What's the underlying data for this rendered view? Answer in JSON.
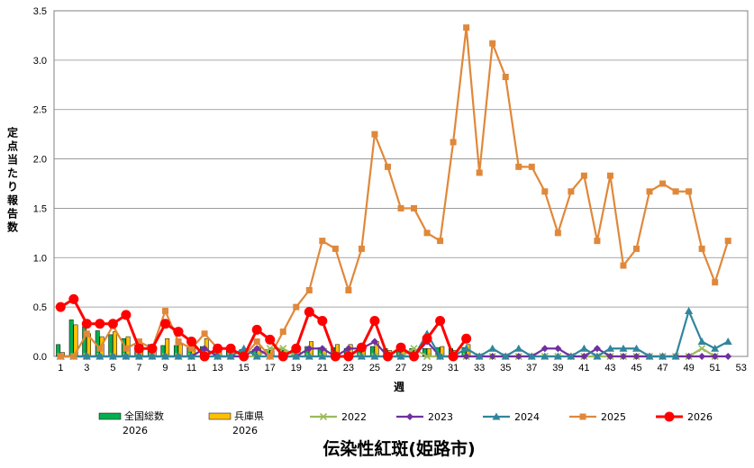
{
  "chart_data": {
    "type": "bar+line",
    "title": "伝染性紅斑(姫路市)",
    "xlabel": "週",
    "ylabel": "定点当たり報告数",
    "ylim": [
      0,
      3.5
    ],
    "yticks": [
      "0.0",
      "0.5",
      "1.0",
      "1.5",
      "2.0",
      "2.5",
      "3.0",
      "3.5"
    ],
    "xlim": [
      1,
      53
    ],
    "xticks": [
      1,
      3,
      5,
      7,
      9,
      11,
      13,
      15,
      17,
      19,
      21,
      23,
      25,
      27,
      29,
      31,
      33,
      35,
      37,
      39,
      41,
      43,
      45,
      47,
      49,
      51,
      53
    ],
    "grid": "horizontal",
    "legend_position": "bottom",
    "bars": [
      {
        "name": "全国総数",
        "name2": "2026",
        "color": "#00B050",
        "x": [
          1,
          2,
          3,
          4,
          5,
          6,
          7,
          8,
          9,
          10,
          11,
          12,
          13,
          14,
          15,
          16,
          17,
          18,
          19,
          20,
          21,
          22,
          23,
          24,
          25,
          26,
          27,
          28,
          29,
          30,
          31,
          32
        ],
        "values": [
          0.12,
          0.37,
          0.3,
          0.26,
          0.22,
          0.18,
          0.13,
          0.12,
          0.11,
          0.11,
          0.1,
          0.1,
          0.08,
          0.08,
          0.07,
          0.07,
          0.07,
          0.07,
          0.06,
          0.1,
          0.09,
          0.09,
          0.08,
          0.09,
          0.1,
          0.08,
          0.09,
          0.08,
          0.08,
          0.09,
          0.08,
          0.09
        ]
      },
      {
        "name": "兵庫県",
        "name2": "2026",
        "color": "#FFC000",
        "x": [
          1,
          2,
          3,
          4,
          5,
          6,
          7,
          8,
          9,
          10,
          11,
          12,
          13,
          14,
          15,
          16,
          17,
          18,
          19,
          20,
          21,
          22,
          23,
          24,
          25,
          26,
          27,
          28,
          29,
          30,
          31,
          32
        ],
        "values": [
          0.04,
          0.32,
          0.23,
          0.2,
          0.25,
          0.2,
          0.12,
          0.1,
          0.18,
          0.12,
          0.09,
          0.18,
          0.06,
          0.05,
          0.03,
          0.1,
          0.06,
          0.06,
          0.1,
          0.15,
          0.08,
          0.12,
          0.12,
          0.12,
          0.15,
          0.06,
          0.08,
          0.06,
          0.08,
          0.1,
          0.06,
          0.12
        ]
      }
    ],
    "series": [
      {
        "name": "2022",
        "color": "#9BBB59",
        "marker": "x",
        "x": [
          1,
          2,
          3,
          4,
          5,
          6,
          7,
          8,
          9,
          10,
          11,
          12,
          13,
          14,
          15,
          16,
          17,
          18,
          19,
          20,
          21,
          22,
          23,
          24,
          25,
          26,
          27,
          28,
          29,
          30,
          31,
          32,
          33,
          34,
          35,
          36,
          37,
          38,
          39,
          40,
          41,
          42,
          43,
          44,
          45,
          46,
          47,
          48,
          49,
          50,
          51
        ],
        "values": [
          0,
          0,
          0,
          0,
          0,
          0,
          0,
          0,
          0,
          0,
          0,
          0,
          0,
          0,
          0,
          0,
          0.08,
          0.08,
          0,
          0,
          0,
          0,
          0,
          0,
          0,
          0,
          0,
          0.08,
          0,
          0,
          0,
          0,
          0,
          0,
          0,
          0,
          0,
          0,
          0,
          0,
          0,
          0,
          0,
          0,
          0,
          0,
          0,
          0,
          0,
          0.08,
          0
        ]
      },
      {
        "name": "2023",
        "color": "#7030A0",
        "marker": "diamond",
        "x": [
          1,
          2,
          3,
          4,
          5,
          6,
          7,
          8,
          9,
          10,
          11,
          12,
          13,
          14,
          15,
          16,
          17,
          18,
          19,
          20,
          21,
          22,
          23,
          24,
          25,
          26,
          27,
          28,
          29,
          30,
          31,
          32,
          33,
          34,
          35,
          36,
          37,
          38,
          39,
          40,
          41,
          42,
          43,
          44,
          45,
          46,
          47,
          48,
          49,
          50,
          51,
          52
        ],
        "values": [
          0,
          0,
          0,
          0,
          0,
          0,
          0,
          0,
          0,
          0,
          0,
          0.08,
          0,
          0,
          0,
          0.08,
          0,
          0,
          0,
          0.08,
          0.08,
          0,
          0.08,
          0.08,
          0.15,
          0,
          0,
          0,
          0.15,
          0,
          0,
          0,
          0,
          0,
          0,
          0,
          0,
          0.08,
          0.08,
          0,
          0,
          0.08,
          0,
          0,
          0,
          0,
          0,
          0,
          0,
          0,
          0,
          0
        ]
      },
      {
        "name": "2024",
        "color": "#31859C",
        "marker": "triangle",
        "x": [
          1,
          2,
          3,
          4,
          5,
          6,
          7,
          8,
          9,
          10,
          11,
          12,
          13,
          14,
          15,
          16,
          17,
          18,
          19,
          20,
          21,
          22,
          23,
          24,
          25,
          26,
          27,
          28,
          29,
          30,
          31,
          32,
          33,
          34,
          35,
          36,
          37,
          38,
          39,
          40,
          41,
          42,
          43,
          44,
          45,
          46,
          47,
          48,
          49,
          50,
          51,
          52
        ],
        "values": [
          0,
          0,
          0,
          0,
          0,
          0,
          0,
          0,
          0,
          0,
          0,
          0,
          0,
          0,
          0.08,
          0,
          0,
          0,
          0,
          0,
          0,
          0,
          0,
          0,
          0,
          0,
          0,
          0,
          0.23,
          0,
          0,
          0.08,
          0,
          0.08,
          0,
          0.08,
          0,
          0,
          0,
          0,
          0.08,
          0,
          0.08,
          0.08,
          0.08,
          0,
          0,
          0,
          0.46,
          0.15,
          0.08,
          0.15
        ]
      },
      {
        "name": "2025",
        "color": "#E0883A",
        "marker": "square",
        "x": [
          1,
          2,
          3,
          4,
          5,
          6,
          7,
          8,
          9,
          10,
          11,
          12,
          13,
          14,
          15,
          16,
          17,
          18,
          19,
          20,
          21,
          22,
          23,
          24,
          25,
          26,
          27,
          28,
          29,
          30,
          31,
          32,
          33,
          34,
          35,
          36,
          37,
          38,
          39,
          40,
          41,
          42,
          43,
          44,
          45,
          46,
          47,
          48,
          49,
          50,
          51,
          52
        ],
        "values": [
          0,
          0,
          0.23,
          0.08,
          0.31,
          0.08,
          0.15,
          0.08,
          0.46,
          0.15,
          0.08,
          0.23,
          0.08,
          0.08,
          0,
          0.15,
          0,
          0.25,
          0.5,
          0.67,
          1.17,
          1.09,
          0.67,
          1.09,
          2.25,
          1.92,
          1.5,
          1.5,
          1.25,
          1.17,
          2.17,
          3.33,
          1.86,
          3.17,
          2.83,
          1.92,
          1.92,
          1.67,
          1.25,
          1.67,
          1.83,
          1.17,
          1.83,
          0.92,
          1.09,
          1.67,
          1.75,
          1.67,
          1.67,
          1.09,
          0.75,
          1.17
        ]
      },
      {
        "name": "2026",
        "color": "#FF0000",
        "marker": "circle",
        "x": [
          1,
          2,
          3,
          4,
          5,
          6,
          7,
          8,
          9,
          10,
          11,
          12,
          13,
          14,
          15,
          16,
          17,
          18,
          19,
          20,
          21,
          22,
          23,
          24,
          25,
          26,
          27,
          28,
          29,
          30,
          31,
          32
        ],
        "values": [
          0.5,
          0.58,
          0.33,
          0.33,
          0.33,
          0.42,
          0.08,
          0.08,
          0.33,
          0.25,
          0.15,
          0,
          0.08,
          0.08,
          0,
          0.27,
          0.17,
          0,
          0.08,
          0.45,
          0.36,
          0,
          0,
          0.09,
          0.36,
          0,
          0.09,
          0,
          0.18,
          0.36,
          0,
          0.18
        ]
      }
    ]
  }
}
